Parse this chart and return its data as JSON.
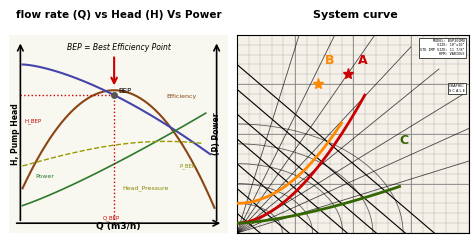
{
  "title_left": "flow rate (Q) vs Head (H) Vs Power",
  "title_right": "System curve",
  "title_bg": "#ffff00",
  "fig_bg": "#ffffff",
  "left_subtitle": "BEP = Best Efficiency Point",
  "left_xlabel": "Q (m3/h)",
  "left_ylabel": "H, Pump Head",
  "right_ylabel": "(P) Power",
  "bep_label": "BEP",
  "efficiency_label": "Efficiency",
  "power_label": "Power",
  "head_pressure_label": "Head_Pressure",
  "arrow_color": "#cc0000",
  "dashed_color": "#cc0000",
  "efficiency_color": "#8B4513",
  "head_color": "#4444aa",
  "power_color": "#2d7a2d",
  "head_pressure_color": "#999900",
  "curve_A_color": "#cc0000",
  "curve_B_color": "#ff8800",
  "curve_C_color": "#336600"
}
